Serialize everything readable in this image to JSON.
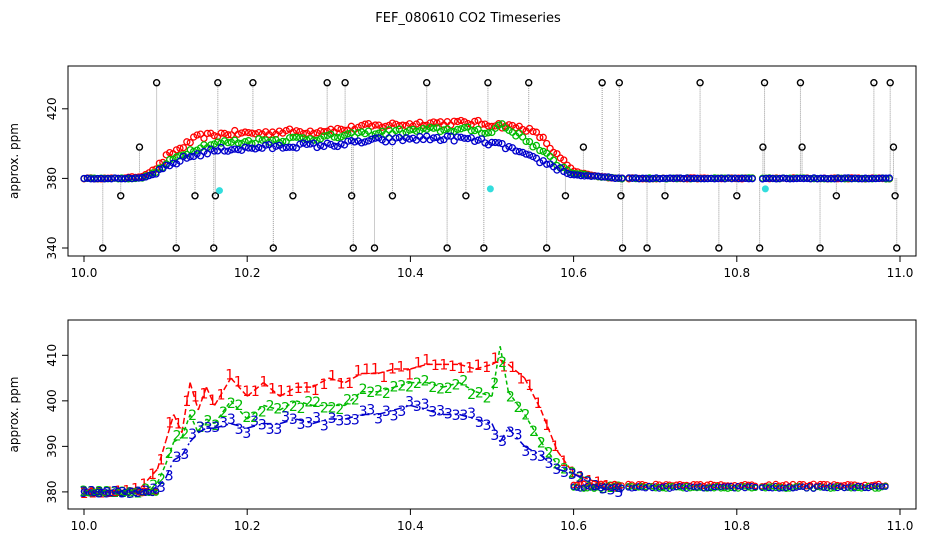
{
  "title": "FEF_080610  CO2 Timeseries",
  "colors": {
    "series1": "#ff0000",
    "series2": "#00bb00",
    "series3": "#0000cc",
    "outlier": "#000000",
    "flag": "#33dddd",
    "connector": "#999999",
    "axis": "#000000"
  },
  "chart_data": [
    {
      "type": "scatter",
      "ylabel": "approx. ppm",
      "xlim": [
        10.0,
        11.0
      ],
      "ylim": [
        340,
        440
      ],
      "ylim_reversed": true,
      "x_ticks": [
        "10.0",
        "10.2",
        "10.4",
        "10.6",
        "10.8",
        "11.0"
      ],
      "y_ticks": [
        "340",
        "380",
        "420"
      ],
      "grid": false,
      "markers": "open circles",
      "series": [
        {
          "values": [
            [
              10.0,
              380
            ],
            [
              10.04,
              380
            ],
            [
              10.07,
              381
            ],
            [
              10.09,
              386
            ],
            [
              10.1,
              392
            ],
            [
              10.12,
              398
            ],
            [
              10.14,
              404
            ],
            [
              10.16,
              405
            ],
            [
              10.18,
              406
            ],
            [
              10.2,
              406
            ],
            [
              10.22,
              406
            ],
            [
              10.24,
              407
            ],
            [
              10.26,
              407
            ],
            [
              10.28,
              407
            ],
            [
              10.3,
              408
            ],
            [
              10.32,
              408
            ],
            [
              10.34,
              410
            ],
            [
              10.36,
              410
            ],
            [
              10.38,
              411
            ],
            [
              10.4,
              411
            ],
            [
              10.42,
              412
            ],
            [
              10.44,
              412
            ],
            [
              10.46,
              412
            ],
            [
              10.48,
              412
            ],
            [
              10.5,
              411
            ],
            [
              10.52,
              410
            ],
            [
              10.54,
              409
            ],
            [
              10.56,
              404
            ],
            [
              10.58,
              393
            ],
            [
              10.6,
              384
            ],
            [
              10.63,
              381
            ],
            [
              10.66,
              380
            ]
          ]
        },
        {
          "values": [
            [
              10.0,
              380
            ],
            [
              10.04,
              380
            ],
            [
              10.07,
              380
            ],
            [
              10.09,
              384
            ],
            [
              10.1,
              388
            ],
            [
              10.12,
              394
            ],
            [
              10.14,
              398
            ],
            [
              10.16,
              400
            ],
            [
              10.18,
              401
            ],
            [
              10.2,
              401
            ],
            [
              10.22,
              402
            ],
            [
              10.24,
              402
            ],
            [
              10.26,
              403
            ],
            [
              10.28,
              403
            ],
            [
              10.3,
              404
            ],
            [
              10.32,
              404
            ],
            [
              10.34,
              406
            ],
            [
              10.36,
              406
            ],
            [
              10.38,
              407
            ],
            [
              10.4,
              407
            ],
            [
              10.42,
              408
            ],
            [
              10.44,
              408
            ],
            [
              10.46,
              408
            ],
            [
              10.48,
              408
            ],
            [
              10.5,
              406
            ],
            [
              10.51,
              412
            ],
            [
              10.52,
              408
            ],
            [
              10.54,
              403
            ],
            [
              10.56,
              396
            ],
            [
              10.58,
              388
            ],
            [
              10.6,
              383
            ],
            [
              10.63,
              381
            ],
            [
              10.66,
              380
            ]
          ]
        },
        {
          "values": [
            [
              10.0,
              380
            ],
            [
              10.04,
              380
            ],
            [
              10.07,
              380
            ],
            [
              10.09,
              383
            ],
            [
              10.1,
              386
            ],
            [
              10.12,
              391
            ],
            [
              10.14,
              394
            ],
            [
              10.16,
              396
            ],
            [
              10.18,
              397
            ],
            [
              10.2,
              397
            ],
            [
              10.22,
              398
            ],
            [
              10.24,
              398
            ],
            [
              10.26,
              399
            ],
            [
              10.28,
              399
            ],
            [
              10.3,
              399
            ],
            [
              10.32,
              400
            ],
            [
              10.34,
              401
            ],
            [
              10.36,
              402
            ],
            [
              10.38,
              402
            ],
            [
              10.4,
              403
            ],
            [
              10.42,
              403
            ],
            [
              10.44,
              403
            ],
            [
              10.46,
              403
            ],
            [
              10.48,
              402
            ],
            [
              10.5,
              400
            ],
            [
              10.52,
              398
            ],
            [
              10.54,
              393
            ],
            [
              10.56,
              390
            ],
            [
              10.58,
              386
            ],
            [
              10.6,
              382
            ],
            [
              10.63,
              381
            ],
            [
              10.66,
              380
            ]
          ]
        },
        {
          "type": "outliers",
          "values": [
            [
              10.023,
              340
            ],
            [
              10.045,
              370
            ],
            [
              10.068,
              398
            ],
            [
              10.089,
              435
            ],
            [
              10.113,
              340
            ],
            [
              10.136,
              370
            ],
            [
              10.159,
              340
            ],
            [
              10.161,
              370
            ],
            [
              10.164,
              435
            ],
            [
              10.207,
              435
            ],
            [
              10.232,
              340
            ],
            [
              10.256,
              370
            ],
            [
              10.298,
              435
            ],
            [
              10.32,
              435
            ],
            [
              10.328,
              370
            ],
            [
              10.33,
              340
            ],
            [
              10.356,
              340
            ],
            [
              10.378,
              370
            ],
            [
              10.42,
              435
            ],
            [
              10.445,
              340
            ],
            [
              10.468,
              370
            ],
            [
              10.49,
              340
            ],
            [
              10.495,
              435
            ],
            [
              10.545,
              435
            ],
            [
              10.567,
              340
            ],
            [
              10.59,
              370
            ],
            [
              10.612,
              398
            ],
            [
              10.635,
              435
            ],
            [
              10.656,
              435
            ],
            [
              10.658,
              370
            ],
            [
              10.66,
              340
            ],
            [
              10.69,
              340
            ],
            [
              10.712,
              370
            ],
            [
              10.755,
              435
            ],
            [
              10.778,
              340
            ],
            [
              10.8,
              370
            ],
            [
              10.828,
              340
            ],
            [
              10.832,
              398
            ],
            [
              10.834,
              435
            ],
            [
              10.878,
              435
            ],
            [
              10.88,
              398
            ],
            [
              10.902,
              340
            ],
            [
              10.922,
              370
            ],
            [
              10.968,
              435
            ],
            [
              10.988,
              435
            ],
            [
              10.992,
              398
            ],
            [
              10.994,
              370
            ],
            [
              10.996,
              340
            ]
          ]
        },
        {
          "type": "flags",
          "values": [
            [
              10.166,
              373
            ],
            [
              10.498,
              374
            ],
            [
              10.835,
              374
            ]
          ]
        }
      ]
    },
    {
      "type": "line",
      "ylabel": "approx. ppm",
      "xlim": [
        10.0,
        11.0
      ],
      "ylim": [
        378,
        416
      ],
      "x_ticks": [
        "10.0",
        "10.2",
        "10.4",
        "10.6",
        "10.8",
        "11.0"
      ],
      "y_ticks": [
        "380",
        "390",
        "400",
        "410"
      ],
      "grid": false,
      "markers": "digit labels 1, 2, 3",
      "series": [
        {
          "marker": "1",
          "values": [
            [
              10.0,
              380
            ],
            [
              10.04,
              380
            ],
            [
              10.07,
              381
            ],
            [
              10.09,
              385
            ],
            [
              10.1,
              391
            ],
            [
              10.11,
              397
            ],
            [
              10.12,
              393
            ],
            [
              10.13,
              404
            ],
            [
              10.14,
              398
            ],
            [
              10.15,
              403
            ],
            [
              10.16,
              399
            ],
            [
              10.18,
              405
            ],
            [
              10.2,
              401
            ],
            [
              10.22,
              404
            ],
            [
              10.24,
              401
            ],
            [
              10.26,
              403
            ],
            [
              10.28,
              403
            ],
            [
              10.3,
              405
            ],
            [
              10.32,
              404
            ],
            [
              10.34,
              406
            ],
            [
              10.36,
              406
            ],
            [
              10.38,
              407
            ],
            [
              10.4,
              407
            ],
            [
              10.42,
              408
            ],
            [
              10.44,
              408
            ],
            [
              10.46,
              408
            ],
            [
              10.48,
              407
            ],
            [
              10.5,
              408
            ],
            [
              10.51,
              409
            ],
            [
              10.52,
              408
            ],
            [
              10.54,
              405
            ],
            [
              10.56,
              398
            ],
            [
              10.58,
              389
            ],
            [
              10.6,
              384
            ],
            [
              10.63,
              382
            ],
            [
              10.66,
              381
            ]
          ]
        },
        {
          "marker": "2",
          "values": [
            [
              10.0,
              380
            ],
            [
              10.04,
              380
            ],
            [
              10.07,
              380
            ],
            [
              10.09,
              382
            ],
            [
              10.1,
              386
            ],
            [
              10.11,
              391
            ],
            [
              10.12,
              392
            ],
            [
              10.13,
              397
            ],
            [
              10.14,
              393
            ],
            [
              10.15,
              396
            ],
            [
              10.16,
              395
            ],
            [
              10.18,
              400
            ],
            [
              10.2,
              396
            ],
            [
              10.22,
              399
            ],
            [
              10.24,
              398
            ],
            [
              10.26,
              400
            ],
            [
              10.28,
              399
            ],
            [
              10.3,
              399
            ],
            [
              10.32,
              399
            ],
            [
              10.34,
              402
            ],
            [
              10.36,
              402
            ],
            [
              10.38,
              403
            ],
            [
              10.4,
              404
            ],
            [
              10.42,
              404
            ],
            [
              10.44,
              403
            ],
            [
              10.46,
              404
            ],
            [
              10.48,
              402
            ],
            [
              10.5,
              401
            ],
            [
              10.51,
              412
            ],
            [
              10.52,
              402
            ],
            [
              10.54,
              397
            ],
            [
              10.56,
              391
            ],
            [
              10.58,
              386
            ],
            [
              10.6,
              384
            ],
            [
              10.63,
              381
            ],
            [
              10.66,
              381
            ]
          ]
        },
        {
          "marker": "3",
          "values": [
            [
              10.0,
              380
            ],
            [
              10.04,
              380
            ],
            [
              10.07,
              380
            ],
            [
              10.09,
              381
            ],
            [
              10.1,
              383
            ],
            [
              10.11,
              387
            ],
            [
              10.12,
              388
            ],
            [
              10.13,
              391
            ],
            [
              10.14,
              393
            ],
            [
              10.15,
              394
            ],
            [
              10.16,
              394
            ],
            [
              10.18,
              395
            ],
            [
              10.2,
              394
            ],
            [
              10.22,
              395
            ],
            [
              10.24,
              395
            ],
            [
              10.26,
              396
            ],
            [
              10.28,
              395
            ],
            [
              10.3,
              396
            ],
            [
              10.32,
              396
            ],
            [
              10.34,
              397
            ],
            [
              10.36,
              397
            ],
            [
              10.38,
              398
            ],
            [
              10.4,
              399
            ],
            [
              10.42,
              398
            ],
            [
              10.44,
              397
            ],
            [
              10.46,
              397
            ],
            [
              10.48,
              396
            ],
            [
              10.5,
              395
            ],
            [
              10.51,
              391
            ],
            [
              10.52,
              394
            ],
            [
              10.54,
              390
            ],
            [
              10.56,
              388
            ],
            [
              10.58,
              385
            ],
            [
              10.6,
              384
            ],
            [
              10.63,
              381
            ],
            [
              10.66,
              380
            ]
          ]
        }
      ]
    }
  ]
}
